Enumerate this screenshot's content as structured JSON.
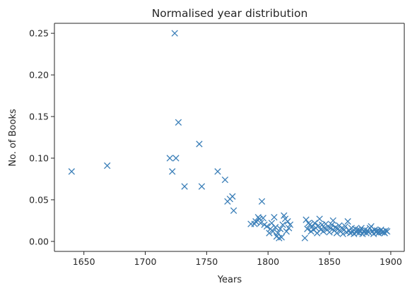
{
  "chart_data": {
    "type": "scatter",
    "title": "Normalised year distribution",
    "xlabel": "Years",
    "ylabel": "No. of Books",
    "xlim": [
      1626,
      1911
    ],
    "ylim": [
      -0.012,
      0.262
    ],
    "xticks": [
      1650,
      1700,
      1750,
      1800,
      1850,
      1900
    ],
    "yticks": [
      0.0,
      0.05,
      0.1,
      0.15,
      0.2,
      0.25
    ],
    "ytick_labels": [
      "0.00",
      "0.05",
      "0.10",
      "0.15",
      "0.20",
      "0.25"
    ],
    "grid": false,
    "marker": "x",
    "color": "#3b7fb8",
    "points": [
      [
        1640,
        0.084
      ],
      [
        1669,
        0.091
      ],
      [
        1720,
        0.1
      ],
      [
        1722,
        0.084
      ],
      [
        1724,
        0.25
      ],
      [
        1725,
        0.1
      ],
      [
        1727,
        0.143
      ],
      [
        1732,
        0.066
      ],
      [
        1744,
        0.117
      ],
      [
        1746,
        0.066
      ],
      [
        1759,
        0.084
      ],
      [
        1765,
        0.074
      ],
      [
        1767,
        0.048
      ],
      [
        1769,
        0.051
      ],
      [
        1771,
        0.054
      ],
      [
        1772,
        0.037
      ],
      [
        1786,
        0.021
      ],
      [
        1789,
        0.021
      ],
      [
        1790,
        0.024
      ],
      [
        1792,
        0.029
      ],
      [
        1793,
        0.027
      ],
      [
        1794,
        0.022
      ],
      [
        1795,
        0.048
      ],
      [
        1796,
        0.028
      ],
      [
        1797,
        0.02
      ],
      [
        1799,
        0.018
      ],
      [
        1801,
        0.01
      ],
      [
        1802,
        0.015
      ],
      [
        1803,
        0.022
      ],
      [
        1804,
        0.012
      ],
      [
        1805,
        0.029
      ],
      [
        1806,
        0.017
      ],
      [
        1807,
        0.006
      ],
      [
        1808,
        0.01
      ],
      [
        1809,
        0.004
      ],
      [
        1810,
        0.015
      ],
      [
        1811,
        0.005
      ],
      [
        1812,
        0.02
      ],
      [
        1813,
        0.031
      ],
      [
        1814,
        0.027
      ],
      [
        1815,
        0.012
      ],
      [
        1816,
        0.024
      ],
      [
        1817,
        0.016
      ],
      [
        1818,
        0.02
      ],
      [
        1830,
        0.004
      ],
      [
        1831,
        0.026
      ],
      [
        1832,
        0.015
      ],
      [
        1833,
        0.022
      ],
      [
        1834,
        0.02
      ],
      [
        1835,
        0.012
      ],
      [
        1836,
        0.018
      ],
      [
        1837,
        0.014
      ],
      [
        1838,
        0.022
      ],
      [
        1839,
        0.016
      ],
      [
        1840,
        0.01
      ],
      [
        1841,
        0.019
      ],
      [
        1842,
        0.027
      ],
      [
        1843,
        0.014
      ],
      [
        1844,
        0.02
      ],
      [
        1845,
        0.012
      ],
      [
        1846,
        0.016
      ],
      [
        1847,
        0.021
      ],
      [
        1848,
        0.014
      ],
      [
        1849,
        0.018
      ],
      [
        1850,
        0.011
      ],
      [
        1851,
        0.016
      ],
      [
        1852,
        0.02
      ],
      [
        1853,
        0.025
      ],
      [
        1854,
        0.013
      ],
      [
        1855,
        0.017
      ],
      [
        1856,
        0.01
      ],
      [
        1857,
        0.015
      ],
      [
        1858,
        0.019
      ],
      [
        1859,
        0.012
      ],
      [
        1860,
        0.016
      ],
      [
        1861,
        0.009
      ],
      [
        1862,
        0.014
      ],
      [
        1863,
        0.018
      ],
      [
        1864,
        0.011
      ],
      [
        1865,
        0.024
      ],
      [
        1866,
        0.013
      ],
      [
        1867,
        0.01
      ],
      [
        1868,
        0.016
      ],
      [
        1869,
        0.012
      ],
      [
        1870,
        0.009
      ],
      [
        1871,
        0.015
      ],
      [
        1872,
        0.011
      ],
      [
        1873,
        0.014
      ],
      [
        1874,
        0.01
      ],
      [
        1875,
        0.013
      ],
      [
        1876,
        0.016
      ],
      [
        1877,
        0.009
      ],
      [
        1878,
        0.012
      ],
      [
        1879,
        0.014
      ],
      [
        1880,
        0.01
      ],
      [
        1881,
        0.013
      ],
      [
        1882,
        0.011
      ],
      [
        1883,
        0.016
      ],
      [
        1884,
        0.018
      ],
      [
        1885,
        0.012
      ],
      [
        1886,
        0.009
      ],
      [
        1887,
        0.014
      ],
      [
        1888,
        0.011
      ],
      [
        1889,
        0.013
      ],
      [
        1890,
        0.01
      ],
      [
        1891,
        0.012
      ],
      [
        1892,
        0.014
      ],
      [
        1893,
        0.011
      ],
      [
        1894,
        0.012
      ],
      [
        1895,
        0.01
      ],
      [
        1896,
        0.013
      ],
      [
        1897,
        0.012
      ]
    ]
  }
}
